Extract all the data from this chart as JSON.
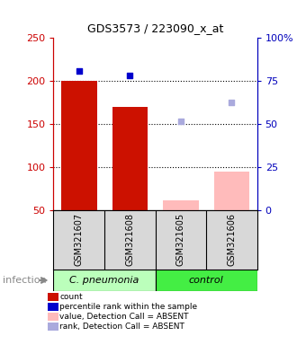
{
  "title": "GDS3573 / 223090_x_at",
  "samples": [
    "GSM321607",
    "GSM321608",
    "GSM321605",
    "GSM321606"
  ],
  "bar_values": [
    200,
    170,
    62,
    95
  ],
  "bar_colors": [
    "#cc1100",
    "#cc1100",
    "#ffbbbb",
    "#ffbbbb"
  ],
  "dot_values": [
    212,
    206,
    153,
    175
  ],
  "dot_colors": [
    "#0000cc",
    "#0000cc",
    "#aaaadd",
    "#aaaadd"
  ],
  "ylim_left": [
    50,
    250
  ],
  "ylim_right": [
    0,
    100
  ],
  "yticks_left": [
    50,
    100,
    150,
    200,
    250
  ],
  "yticks_right": [
    0,
    25,
    50,
    75,
    100
  ],
  "ytick_labels_right": [
    "0",
    "25",
    "50",
    "75",
    "100%"
  ],
  "group_colors": {
    "C. pneumonia": "#bbffbb",
    "control": "#44ee44"
  },
  "legend_items": [
    {
      "label": "count",
      "color": "#cc1100"
    },
    {
      "label": "percentile rank within the sample",
      "color": "#0000cc"
    },
    {
      "label": "value, Detection Call = ABSENT",
      "color": "#ffbbbb"
    },
    {
      "label": "rank, Detection Call = ABSENT",
      "color": "#aaaadd"
    }
  ],
  "left_axis_color": "#cc0000",
  "right_axis_color": "#0000bb",
  "plot_bg_color": "#ffffff",
  "sample_box_color": "#d8d8d8",
  "grid_dotted_yticks": [
    100,
    150,
    200
  ]
}
